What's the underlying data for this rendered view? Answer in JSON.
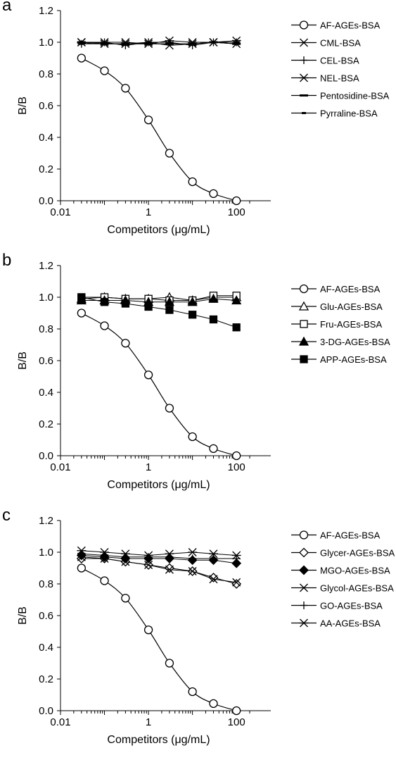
{
  "chart_data": [
    {
      "type": "scatter",
      "panel_label": "a",
      "xlabel": "Competitors (μg/mL)",
      "ylabel": "B/B0",
      "xscale": "log",
      "xlim": [
        0.01,
        200
      ],
      "ylim": [
        0,
        1.2
      ],
      "x_ticks": [
        "0.01",
        "1",
        "100"
      ],
      "y_ticks": [
        "0.0",
        "0.2",
        "0.4",
        "0.6",
        "0.8",
        "1.0",
        "1.2"
      ],
      "legend_position": "right",
      "series": [
        {
          "name": "AF-AGEs-BSA",
          "marker": "circle-open",
          "fit_curve": true,
          "x": [
            0.03,
            0.1,
            0.3,
            1,
            3,
            10,
            30,
            100
          ],
          "y": [
            0.9,
            0.82,
            0.71,
            0.51,
            0.3,
            0.12,
            0.045,
            0.0
          ]
        },
        {
          "name": "CML-BSA",
          "marker": "x",
          "x": [
            0.03,
            0.1,
            0.3,
            1,
            3,
            10,
            30,
            100
          ],
          "y": [
            1.0,
            0.99,
            0.99,
            1.0,
            0.98,
            0.99,
            1.0,
            0.99
          ]
        },
        {
          "name": "CEL-BSA",
          "marker": "plus",
          "x": [
            0.03,
            0.1,
            0.3,
            1,
            3,
            10,
            30,
            100
          ],
          "y": [
            0.99,
            1.0,
            0.98,
            1.0,
            1.0,
            0.98,
            1.0,
            1.0
          ]
        },
        {
          "name": "NEL-BSA",
          "marker": "asterisk",
          "x": [
            0.03,
            0.1,
            0.3,
            1,
            3,
            10,
            30,
            100
          ],
          "y": [
            1.0,
            1.0,
            1.0,
            0.99,
            1.01,
            1.0,
            1.0,
            1.01
          ]
        },
        {
          "name": "Pentosidine-BSA",
          "marker": "dash",
          "x": [
            0.03,
            0.1,
            0.3,
            1,
            3,
            10,
            30,
            100
          ],
          "y": [
            1.0,
            0.99,
            0.99,
            0.99,
            0.99,
            0.99,
            1.0,
            0.99
          ]
        },
        {
          "name": "Pyrraline-BSA",
          "marker": "small-dash",
          "x": [
            0.03,
            0.1,
            0.3,
            1,
            3,
            10,
            30,
            100
          ],
          "y": [
            0.99,
            0.99,
            0.99,
            0.99,
            0.99,
            0.99,
            1.0,
            0.99
          ]
        }
      ]
    },
    {
      "type": "scatter",
      "panel_label": "b",
      "xlabel": "Competitors (μg/mL)",
      "ylabel": "B/B0",
      "xscale": "log",
      "xlim": [
        0.01,
        200
      ],
      "ylim": [
        0,
        1.2
      ],
      "x_ticks": [
        "0.01",
        "1",
        "100"
      ],
      "y_ticks": [
        "0.0",
        "0.2",
        "0.4",
        "0.6",
        "0.8",
        "1.0",
        "1.2"
      ],
      "legend_position": "right",
      "series": [
        {
          "name": "AF-AGEs-BSA",
          "marker": "circle-open",
          "fit_curve": true,
          "x": [
            0.03,
            0.1,
            0.3,
            1,
            3,
            10,
            30,
            100
          ],
          "y": [
            0.9,
            0.82,
            0.71,
            0.51,
            0.3,
            0.12,
            0.045,
            0.0
          ]
        },
        {
          "name": "Glu-AGEs-BSA",
          "marker": "triangle-open",
          "x": [
            0.03,
            0.1,
            0.3,
            1,
            3,
            10,
            30,
            100
          ],
          "y": [
            0.99,
            1.0,
            0.99,
            0.99,
            1.0,
            0.98,
            1.0,
            1.0
          ]
        },
        {
          "name": "Fru-AGEs-BSA",
          "marker": "square-open",
          "x": [
            0.03,
            0.1,
            0.3,
            1,
            3,
            10,
            30,
            100
          ],
          "y": [
            1.0,
            1.0,
            0.99,
            0.99,
            0.98,
            0.98,
            1.01,
            1.01
          ]
        },
        {
          "name": "3-DG-AGEs-BSA",
          "marker": "triangle-filled",
          "x": [
            0.03,
            0.1,
            0.3,
            1,
            3,
            10,
            30,
            100
          ],
          "y": [
            0.98,
            0.98,
            0.98,
            0.97,
            0.97,
            0.97,
            0.99,
            0.98
          ]
        },
        {
          "name": "APP-AGEs-BSA",
          "marker": "square-filled",
          "x": [
            0.03,
            0.1,
            0.3,
            1,
            3,
            10,
            30,
            100
          ],
          "y": [
            1.0,
            0.97,
            0.96,
            0.94,
            0.92,
            0.89,
            0.86,
            0.81
          ]
        }
      ]
    },
    {
      "type": "scatter",
      "panel_label": "c",
      "xlabel": "Competitors (μg/mL)",
      "ylabel": "B/B0",
      "xscale": "log",
      "xlim": [
        0.01,
        200
      ],
      "ylim": [
        0,
        1.2
      ],
      "x_ticks": [
        "0.01",
        "1",
        "100"
      ],
      "y_ticks": [
        "0.0",
        "0.2",
        "0.4",
        "0.6",
        "0.8",
        "1.0",
        "1.2"
      ],
      "legend_position": "right",
      "series": [
        {
          "name": "AF-AGEs-BSA",
          "marker": "circle-open",
          "fit_curve": true,
          "x": [
            0.03,
            0.1,
            0.3,
            1,
            3,
            10,
            30,
            100
          ],
          "y": [
            0.9,
            0.82,
            0.71,
            0.51,
            0.3,
            0.12,
            0.045,
            0.0
          ]
        },
        {
          "name": "Glycer-AGEs-BSA",
          "marker": "diamond-open",
          "x": [
            0.03,
            0.1,
            0.3,
            1,
            3,
            10,
            30,
            100
          ],
          "y": [
            0.96,
            0.96,
            0.94,
            0.92,
            0.9,
            0.88,
            0.84,
            0.8
          ]
        },
        {
          "name": "MGO-AGEs-BSA",
          "marker": "diamond-filled",
          "x": [
            0.03,
            0.1,
            0.3,
            1,
            3,
            10,
            30,
            100
          ],
          "y": [
            0.98,
            0.97,
            0.96,
            0.96,
            0.96,
            0.95,
            0.95,
            0.93
          ]
        },
        {
          "name": "Glycol-AGEs-BSA",
          "marker": "x",
          "x": [
            0.03,
            0.1,
            0.3,
            1,
            3,
            10,
            30,
            100
          ],
          "y": [
            0.97,
            0.96,
            0.94,
            0.92,
            0.89,
            0.88,
            0.83,
            0.81
          ]
        },
        {
          "name": "GO-AGEs-BSA",
          "marker": "plus",
          "x": [
            0.03,
            0.1,
            0.3,
            1,
            3,
            10,
            30,
            100
          ],
          "y": [
            0.99,
            0.98,
            0.97,
            0.97,
            0.97,
            0.96,
            0.96,
            0.96
          ]
        },
        {
          "name": "AA-AGEs-BSA",
          "marker": "asterisk",
          "x": [
            0.03,
            0.1,
            0.3,
            1,
            3,
            10,
            30,
            100
          ],
          "y": [
            1.01,
            1.0,
            0.99,
            0.98,
            0.99,
            1.0,
            0.99,
            0.98
          ]
        }
      ]
    }
  ]
}
